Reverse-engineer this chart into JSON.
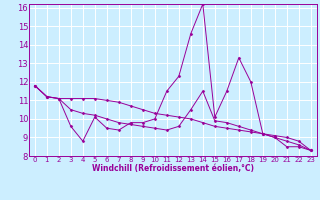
{
  "xlabel": "Windchill (Refroidissement éolien,°C)",
  "background_color": "#cceeff",
  "grid_color": "#ffffff",
  "line_color": "#990099",
  "xlim": [
    -0.5,
    23.5
  ],
  "ylim": [
    8,
    16.2
  ],
  "yticks": [
    8,
    9,
    10,
    11,
    12,
    13,
    14,
    15,
    16
  ],
  "xticks": [
    0,
    1,
    2,
    3,
    4,
    5,
    6,
    7,
    8,
    9,
    10,
    11,
    12,
    13,
    14,
    15,
    16,
    17,
    18,
    19,
    20,
    21,
    22,
    23
  ],
  "series": [
    [
      11.8,
      11.2,
      11.1,
      9.6,
      8.8,
      10.1,
      9.5,
      9.4,
      9.8,
      9.8,
      10.0,
      11.5,
      12.3,
      14.6,
      16.2,
      10.1,
      11.5,
      13.3,
      12.0,
      9.2,
      9.0,
      8.5,
      8.5,
      8.3
    ],
    [
      11.8,
      11.2,
      11.1,
      11.1,
      11.1,
      11.1,
      11.0,
      10.9,
      10.7,
      10.5,
      10.3,
      10.2,
      10.1,
      10.0,
      9.8,
      9.6,
      9.5,
      9.4,
      9.3,
      9.2,
      9.1,
      9.0,
      8.8,
      8.3
    ],
    [
      11.8,
      11.2,
      11.1,
      10.5,
      10.3,
      10.2,
      10.0,
      9.8,
      9.7,
      9.6,
      9.5,
      9.4,
      9.6,
      10.5,
      11.5,
      9.9,
      9.8,
      9.6,
      9.4,
      9.2,
      9.0,
      8.8,
      8.6,
      8.3
    ]
  ]
}
